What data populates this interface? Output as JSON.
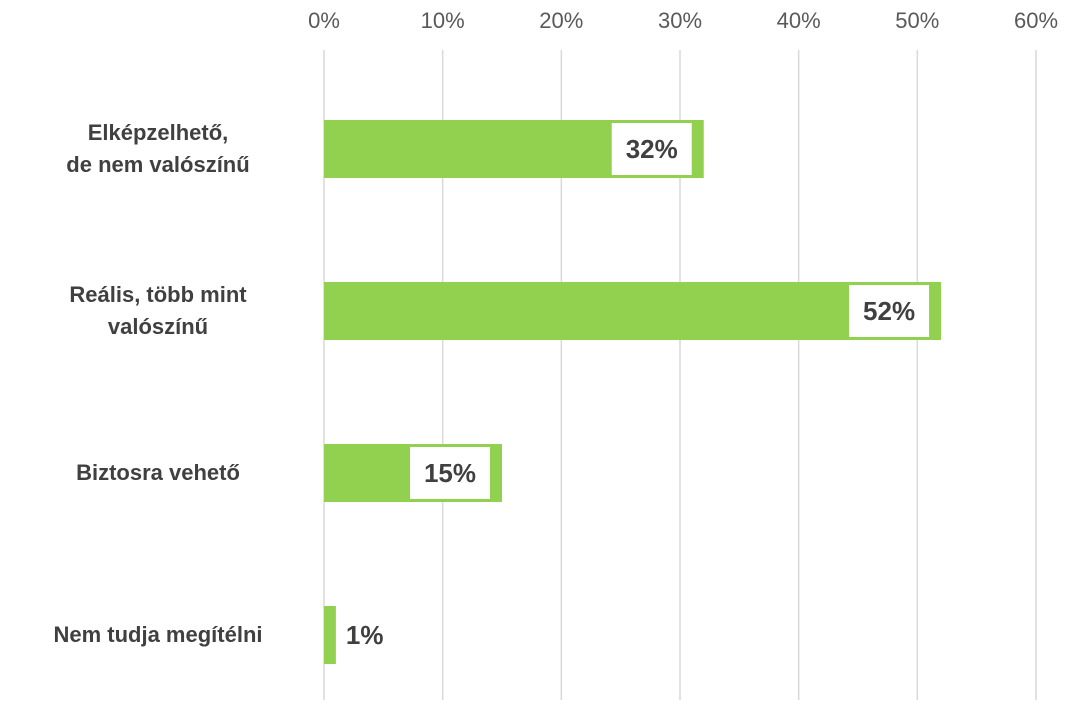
{
  "chart_data": {
    "type": "bar",
    "orientation": "horizontal",
    "categories": [
      "Elképzelhető,\nde nem valószínű",
      "Reális, több mint\nvalószínű",
      "Biztosra vehető",
      "Nem tudja megítélni"
    ],
    "values": [
      32,
      52,
      15,
      1
    ],
    "value_labels": [
      "32%",
      "52%",
      "15%",
      "1%"
    ],
    "color": "#92d050",
    "xlim": [
      0,
      60
    ],
    "xticks": [
      {
        "value": 0,
        "label": "0%"
      },
      {
        "value": 10,
        "label": "10%"
      },
      {
        "value": 20,
        "label": "20%"
      },
      {
        "value": 30,
        "label": "30%"
      },
      {
        "value": 40,
        "label": "40%"
      },
      {
        "value": 50,
        "label": "50%"
      },
      {
        "value": 60,
        "label": "60%"
      }
    ],
    "grid": true
  }
}
